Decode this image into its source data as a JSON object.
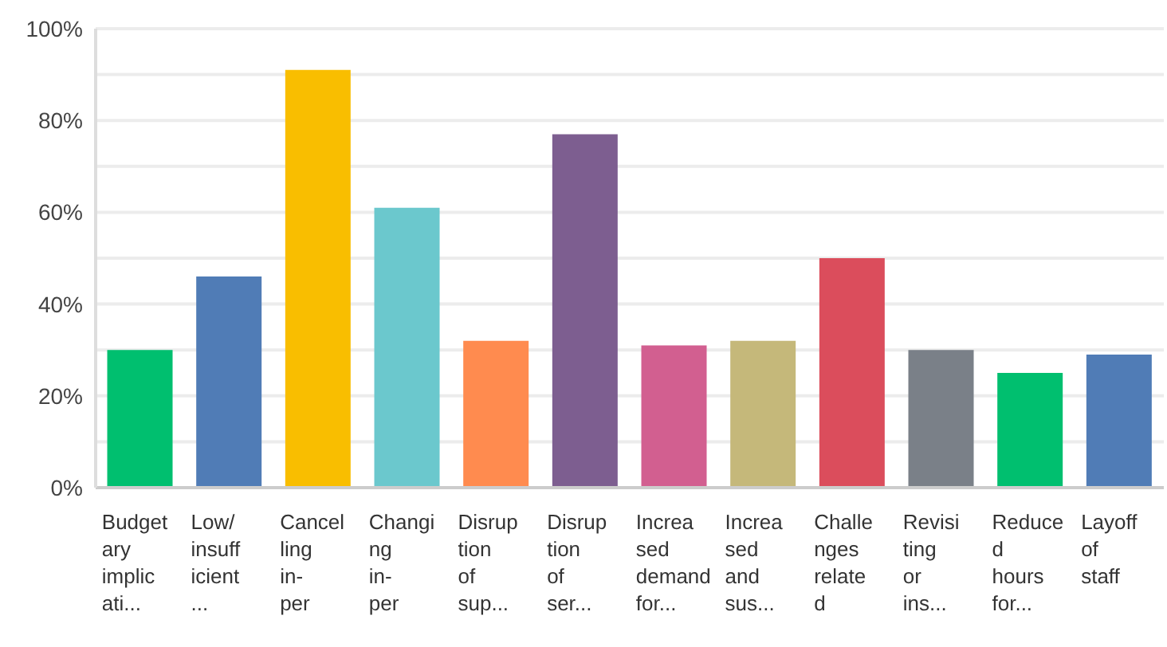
{
  "chart_data": {
    "type": "bar",
    "categories": [
      "Budget\nary\nimplic\nati...",
      "Low/\ninsuff\nicient\n...",
      "Cancel\nling\nin-\nper",
      "Changi\nng\nin-\nper",
      "Disrup\ntion\nof\nsup...",
      "Disrup\ntion\nof\nser...",
      "Increa\nsed\ndemand\nfor...",
      "Increa\nsed\nand\nsus...",
      "Challe\nnges\nrelate\nd",
      "Revisi\nting\nor\nins...",
      "Reduce\nd\nhours\nfor...",
      "Layoff\nof\nstaff"
    ],
    "values": [
      30,
      46,
      91,
      61,
      32,
      77,
      31,
      32,
      50,
      30,
      25,
      29
    ],
    "colors": [
      "#00bf6f",
      "#507cb6",
      "#f9be00",
      "#6bc8cd",
      "#ff8b4f",
      "#7d5e90",
      "#d25f90",
      "#c5b87a",
      "#db4d5c",
      "#7a8088",
      "#00bf6f",
      "#507cb6"
    ],
    "ylim": [
      0,
      100
    ],
    "yticks": [
      {
        "value": 0,
        "label": "0%"
      },
      {
        "value": 10,
        "label": null
      },
      {
        "value": 20,
        "label": "20%"
      },
      {
        "value": 30,
        "label": null
      },
      {
        "value": 40,
        "label": "40%"
      },
      {
        "value": 50,
        "label": null
      },
      {
        "value": 60,
        "label": "60%"
      },
      {
        "value": 70,
        "label": null
      },
      {
        "value": 80,
        "label": "80%"
      },
      {
        "value": 90,
        "label": null
      },
      {
        "value": 100,
        "label": "100%"
      }
    ],
    "grid": "y"
  }
}
